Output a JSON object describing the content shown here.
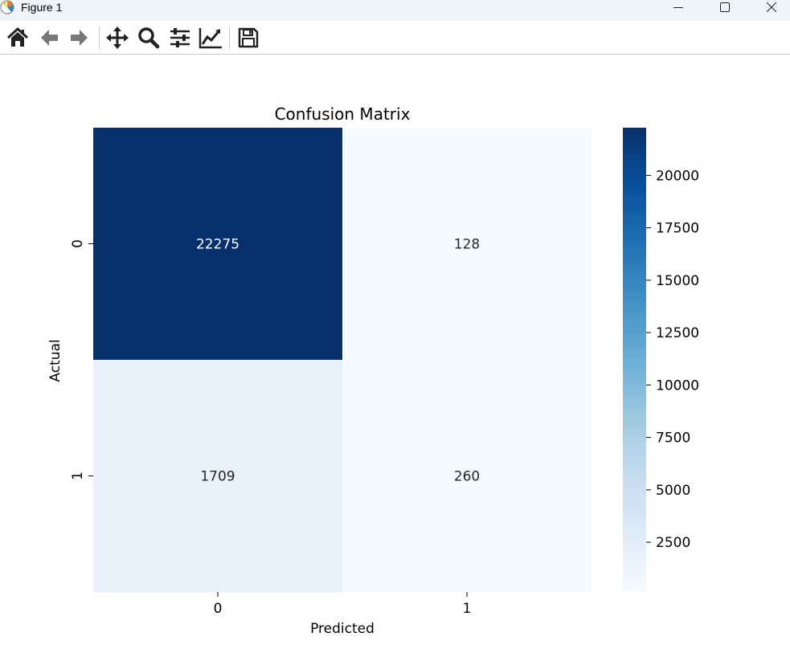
{
  "window": {
    "title": "Figure 1",
    "controls": [
      "minimize-icon",
      "maximize-icon",
      "close-icon"
    ]
  },
  "toolbar": {
    "buttons": [
      {
        "name": "home",
        "icon": "home-icon"
      },
      {
        "name": "back",
        "icon": "arrow-left-icon"
      },
      {
        "name": "forward",
        "icon": "arrow-right-icon"
      },
      {
        "name": "pan",
        "icon": "move-icon"
      },
      {
        "name": "zoom",
        "icon": "magnifier-icon"
      },
      {
        "name": "configure-subplots",
        "icon": "sliders-icon"
      },
      {
        "name": "edit-axis",
        "icon": "line-chart-icon"
      },
      {
        "name": "save",
        "icon": "floppy-disk-icon"
      }
    ]
  },
  "chart_data": {
    "type": "heatmap",
    "title": "Confusion Matrix",
    "xlabel": "Predicted",
    "ylabel": "Actual",
    "x_categories": [
      "0",
      "1"
    ],
    "y_categories": [
      "0",
      "1"
    ],
    "values": [
      [
        22275,
        128
      ],
      [
        1709,
        260
      ]
    ],
    "annotations": [
      [
        "22275",
        "128"
      ],
      [
        "1709",
        "260"
      ]
    ],
    "colormap": "Blues",
    "colorbar": {
      "ticks": [
        2500,
        5000,
        7500,
        10000,
        12500,
        15000,
        17500,
        20000
      ],
      "tick_labels": [
        "2500",
        "5000",
        "7500",
        "10000",
        "12500",
        "15000",
        "17500",
        "20000"
      ],
      "range": [
        128,
        22275
      ]
    },
    "colors": {
      "min": "#f7fbff",
      "max": "#08306b"
    }
  }
}
